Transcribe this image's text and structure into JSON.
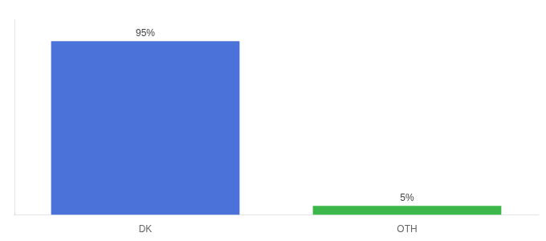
{
  "chart_data": {
    "type": "bar",
    "categories": [
      "DK",
      "OTH"
    ],
    "values": [
      95,
      5
    ],
    "value_labels": [
      "95%",
      "5%"
    ],
    "colors": [
      "#4a72d9",
      "#3cb84a"
    ],
    "ylim": [
      0,
      107
    ],
    "tick_labels": "x",
    "grid": false,
    "data_labels": true
  }
}
